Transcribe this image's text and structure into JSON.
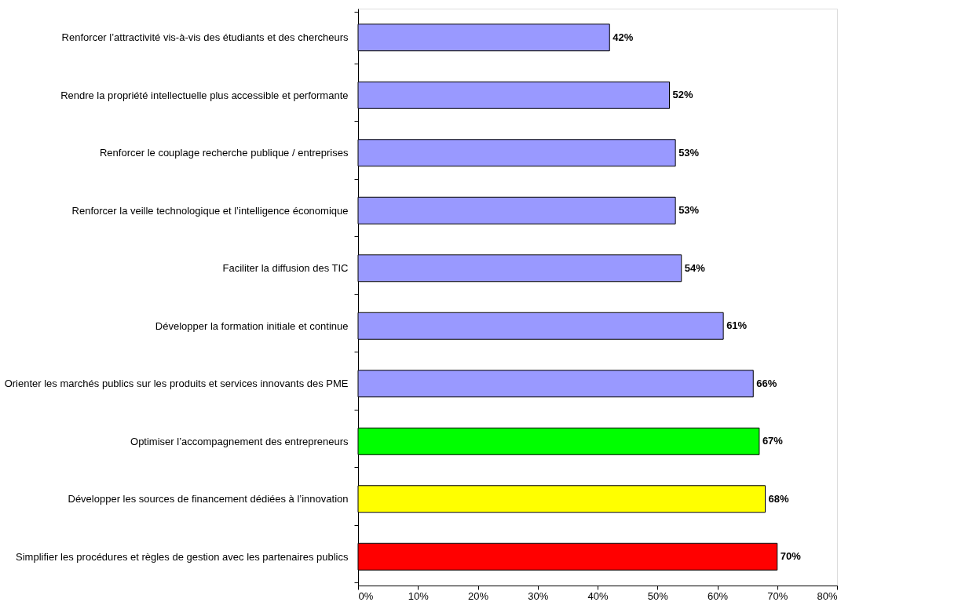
{
  "chart_data": {
    "type": "bar",
    "orientation": "horizontal",
    "categories": [
      "Renforcer l’attractivité vis-à-vis des étudiants et des chercheurs",
      "Rendre la propriété intellectuelle plus accessible et performante",
      "Renforcer le couplage recherche publique / entreprises",
      "Renforcer la veille technologique et l’intelligence économique",
      "Faciliter la diffusion des TIC",
      "Développer la formation initiale et continue",
      "Orienter les marchés publics sur les produits et services innovants des PME",
      "Optimiser l’accompagnement des entrepreneurs",
      "Développer les sources de financement dédiées à l’innovation",
      "Simplifier les procédures et règles de gestion avec les partenaires publics"
    ],
    "values": [
      42,
      52,
      53,
      53,
      54,
      61,
      66,
      67,
      68,
      70
    ],
    "colors": [
      "#9999ff",
      "#9999ff",
      "#9999ff",
      "#9999ff",
      "#9999ff",
      "#9999ff",
      "#9999ff",
      "#00ff00",
      "#ffff00",
      "#ff0000"
    ],
    "value_labels": [
      "42%",
      "52%",
      "53%",
      "53%",
      "54%",
      "61%",
      "66%",
      "67%",
      "68%",
      "70%"
    ],
    "xlim": [
      0,
      80
    ],
    "xticks": [
      {
        "value": 0,
        "label": "0%"
      },
      {
        "value": 10,
        "label": "10%"
      },
      {
        "value": 20,
        "label": "20%"
      },
      {
        "value": 30,
        "label": "30%"
      },
      {
        "value": 40,
        "label": "40%"
      },
      {
        "value": 50,
        "label": "50%"
      },
      {
        "value": 60,
        "label": "60%"
      },
      {
        "value": 70,
        "label": "70%"
      },
      {
        "value": 80,
        "label": "80%"
      }
    ],
    "grid": false
  }
}
